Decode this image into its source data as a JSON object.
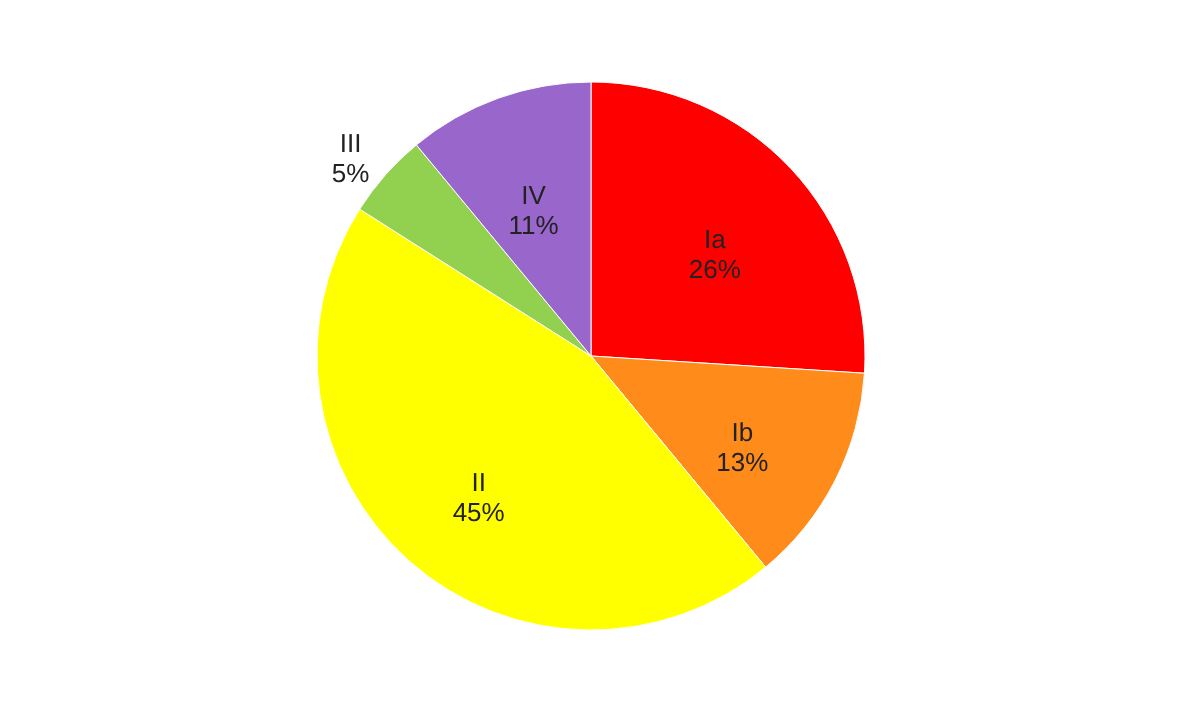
{
  "chart_data": {
    "type": "pie",
    "categories": [
      "Ia",
      "Ib",
      "II",
      "III",
      "IV"
    ],
    "values": [
      26,
      13,
      45,
      5,
      11
    ],
    "value_labels": [
      "26%",
      "13%",
      "45%",
      "5%",
      "11%"
    ],
    "colors": [
      "#ff0000",
      "#ff8c1a",
      "#ffff00",
      "#92d050",
      "#9966cc"
    ],
    "legend": false
  }
}
